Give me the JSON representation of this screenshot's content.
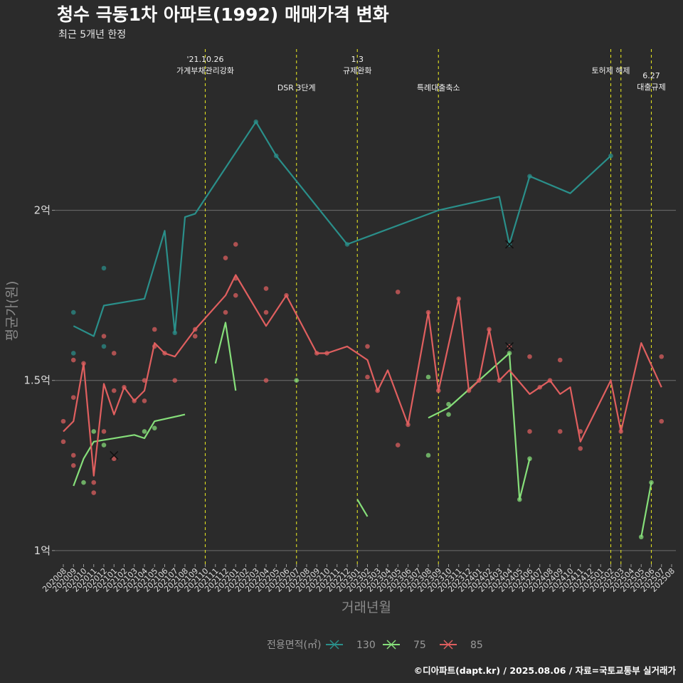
{
  "chart_data": {
    "type": "line",
    "title": "청수 극동1차 아파트(1992) 매매가격 변화",
    "subtitle": "최근 5개년 한정",
    "xlabel": "거래년월",
    "ylabel": "평균가(원)",
    "caption": "©디아파트(dapt.kr) / 2025.08.06 / 자료=국토교통부 실거래가",
    "ylim": [
      0.96,
      2.48
    ],
    "y_ticks": [
      {
        "value": 1.0,
        "label": "1억"
      },
      {
        "value": 1.5,
        "label": "1.5억"
      },
      {
        "value": 2.0,
        "label": "2억"
      }
    ],
    "x_ticks": [
      "202008",
      "202009",
      "202010",
      "202011",
      "202012",
      "202101",
      "202102",
      "202103",
      "202104",
      "202105",
      "202106",
      "202107",
      "202108",
      "202109",
      "202110",
      "202111",
      "202112",
      "202201",
      "202202",
      "202203",
      "202204",
      "202205",
      "202206",
      "202207",
      "202208",
      "202209",
      "202210",
      "202211",
      "202212",
      "202301",
      "202302",
      "202303",
      "202304",
      "202305",
      "202306",
      "202307",
      "202308",
      "202309",
      "202310",
      "202311",
      "202312",
      "202401",
      "202402",
      "202403",
      "202404",
      "202405",
      "202406",
      "202407",
      "202408",
      "202409",
      "202410",
      "202411",
      "202412",
      "202501",
      "202502",
      "202503",
      "202504",
      "202505",
      "202506",
      "202507",
      "202508"
    ],
    "grid": true,
    "legend": {
      "title": "전용면적(㎡)",
      "position": "bottom"
    },
    "events": [
      {
        "x": "202110",
        "label": [
          "'21.10.26",
          "가계부채관리강화"
        ],
        "row": 0
      },
      {
        "x": "202207",
        "label": [
          "DSR 3단계"
        ],
        "row": 2
      },
      {
        "x": "202301",
        "label": [
          "1.3",
          "규제완화"
        ],
        "row": 0
      },
      {
        "x": "202309",
        "label": [
          "특례대출축소"
        ],
        "row": 2
      },
      {
        "x": "202502",
        "label": [
          "토허제 해제"
        ],
        "row": 1
      },
      {
        "x": "202503",
        "label": [],
        "row": 1
      },
      {
        "x": "202506",
        "label": [
          "6.27",
          "대출규제"
        ],
        "row": 3
      }
    ],
    "series": [
      {
        "name": "130",
        "color": "#2a8f8a",
        "line": [
          [
            "202009",
            1.66
          ],
          [
            "202011",
            1.63
          ],
          [
            "202012",
            1.72
          ],
          [
            "202104",
            1.74
          ],
          [
            "202106",
            1.94
          ],
          [
            "202107",
            1.64
          ],
          [
            "202108",
            1.98
          ],
          [
            "202109",
            1.99
          ],
          [
            "202203",
            2.26
          ],
          [
            "202205",
            2.16
          ],
          [
            "202212",
            1.9
          ],
          [
            "202309",
            2.0
          ],
          [
            "202403",
            2.04
          ],
          [
            "202404",
            1.9
          ],
          [
            "202406",
            2.1
          ],
          [
            "202410",
            2.05
          ],
          [
            "202502",
            2.16
          ]
        ],
        "points": [
          [
            "202009",
            1.58
          ],
          [
            "202009",
            1.7
          ],
          [
            "202012",
            1.6
          ],
          [
            "202012",
            1.83
          ],
          [
            "202107",
            1.64
          ],
          [
            "202203",
            2.26
          ],
          [
            "202205",
            2.16
          ],
          [
            "202212",
            1.9
          ],
          [
            "202404",
            1.9
          ],
          [
            "202406",
            2.1
          ],
          [
            "202502",
            2.16
          ]
        ],
        "cancelled": [
          [
            "202404",
            1.9
          ]
        ]
      },
      {
        "name": "75",
        "color": "#86df7a",
        "segments": [
          [
            [
              "202009",
              1.19
            ],
            [
              "202010",
              1.27
            ],
            [
              "202011",
              1.32
            ],
            [
              "202103",
              1.34
            ],
            [
              "202104",
              1.33
            ],
            [
              "202105",
              1.38
            ],
            [
              "202108",
              1.4
            ]
          ],
          [
            [
              "202111",
              1.55
            ],
            [
              "202112",
              1.67
            ],
            [
              "202201",
              1.47
            ]
          ],
          [
            [
              "202301",
              1.15
            ],
            [
              "202302",
              1.1
            ]
          ],
          [
            [
              "202308",
              1.39
            ],
            [
              "202310",
              1.42
            ],
            [
              "202404",
              1.58
            ],
            [
              "202405",
              1.15
            ],
            [
              "202406",
              1.27
            ]
          ],
          [
            [
              "202505",
              1.04
            ],
            [
              "202506",
              1.2
            ]
          ]
        ],
        "points": [
          [
            "202010",
            1.2
          ],
          [
            "202011",
            1.35
          ],
          [
            "202012",
            1.31
          ],
          [
            "202104",
            1.35
          ],
          [
            "202105",
            1.36
          ],
          [
            "202207",
            1.5
          ],
          [
            "202308",
            1.51
          ],
          [
            "202308",
            1.28
          ],
          [
            "202310",
            1.43
          ],
          [
            "202310",
            1.4
          ],
          [
            "202404",
            1.58
          ],
          [
            "202405",
            1.15
          ],
          [
            "202406",
            1.27
          ],
          [
            "202505",
            1.04
          ],
          [
            "202506",
            1.2
          ]
        ],
        "cancelled": []
      },
      {
        "name": "85",
        "color": "#e05f5f",
        "line": [
          [
            "202008",
            1.35
          ],
          [
            "202009",
            1.38
          ],
          [
            "202010",
            1.55
          ],
          [
            "202011",
            1.22
          ],
          [
            "202012",
            1.49
          ],
          [
            "202101",
            1.4
          ],
          [
            "202102",
            1.48
          ],
          [
            "202103",
            1.44
          ],
          [
            "202104",
            1.47
          ],
          [
            "202105",
            1.61
          ],
          [
            "202106",
            1.58
          ],
          [
            "202107",
            1.57
          ],
          [
            "202109",
            1.65
          ],
          [
            "202112",
            1.75
          ],
          [
            "202201",
            1.81
          ],
          [
            "202204",
            1.66
          ],
          [
            "202206",
            1.75
          ],
          [
            "202209",
            1.58
          ],
          [
            "202210",
            1.58
          ],
          [
            "202212",
            1.6
          ],
          [
            "202302",
            1.56
          ],
          [
            "202303",
            1.47
          ],
          [
            "202304",
            1.53
          ],
          [
            "202306",
            1.37
          ],
          [
            "202308",
            1.7
          ],
          [
            "202309",
            1.47
          ],
          [
            "202311",
            1.74
          ],
          [
            "202312",
            1.47
          ],
          [
            "202401",
            1.5
          ],
          [
            "202402",
            1.65
          ],
          [
            "202403",
            1.5
          ],
          [
            "202404",
            1.53
          ],
          [
            "202406",
            1.46
          ],
          [
            "202407",
            1.48
          ],
          [
            "202408",
            1.5
          ],
          [
            "202409",
            1.46
          ],
          [
            "202410",
            1.48
          ],
          [
            "202411",
            1.32
          ],
          [
            "202502",
            1.5
          ],
          [
            "202503",
            1.35
          ],
          [
            "202505",
            1.61
          ],
          [
            "202507",
            1.48
          ]
        ],
        "points": [
          [
            "202008",
            1.38
          ],
          [
            "202008",
            1.32
          ],
          [
            "202009",
            1.56
          ],
          [
            "202009",
            1.45
          ],
          [
            "202009",
            1.28
          ],
          [
            "202009",
            1.25
          ],
          [
            "202010",
            1.55
          ],
          [
            "202011",
            1.2
          ],
          [
            "202011",
            1.17
          ],
          [
            "202012",
            1.63
          ],
          [
            "202012",
            1.35
          ],
          [
            "202101",
            1.58
          ],
          [
            "202101",
            1.47
          ],
          [
            "202101",
            1.27
          ],
          [
            "202102",
            1.48
          ],
          [
            "202103",
            1.44
          ],
          [
            "202104",
            1.44
          ],
          [
            "202104",
            1.5
          ],
          [
            "202105",
            1.65
          ],
          [
            "202105",
            1.6
          ],
          [
            "202106",
            1.58
          ],
          [
            "202107",
            1.5
          ],
          [
            "202109",
            1.63
          ],
          [
            "202109",
            1.65
          ],
          [
            "202112",
            1.86
          ],
          [
            "202112",
            1.7
          ],
          [
            "202201",
            1.9
          ],
          [
            "202201",
            1.75
          ],
          [
            "202201",
            1.8
          ],
          [
            "202204",
            1.77
          ],
          [
            "202204",
            1.7
          ],
          [
            "202204",
            1.5
          ],
          [
            "202206",
            1.75
          ],
          [
            "202209",
            1.58
          ],
          [
            "202210",
            1.58
          ],
          [
            "202302",
            1.6
          ],
          [
            "202302",
            1.51
          ],
          [
            "202303",
            1.47
          ],
          [
            "202305",
            1.76
          ],
          [
            "202305",
            1.31
          ],
          [
            "202306",
            1.37
          ],
          [
            "202308",
            1.7
          ],
          [
            "202309",
            1.47
          ],
          [
            "202311",
            1.74
          ],
          [
            "202312",
            1.47
          ],
          [
            "202401",
            1.5
          ],
          [
            "202402",
            1.65
          ],
          [
            "202403",
            1.5
          ],
          [
            "202404",
            1.6
          ],
          [
            "202406",
            1.57
          ],
          [
            "202406",
            1.35
          ],
          [
            "202407",
            1.48
          ],
          [
            "202408",
            1.5
          ],
          [
            "202409",
            1.56
          ],
          [
            "202409",
            1.35
          ],
          [
            "202411",
            1.35
          ],
          [
            "202411",
            1.3
          ],
          [
            "202503",
            1.35
          ],
          [
            "202507",
            1.57
          ],
          [
            "202507",
            1.38
          ]
        ],
        "cancelled": [
          [
            "202101",
            1.28
          ],
          [
            "202404",
            1.6
          ]
        ]
      }
    ]
  }
}
